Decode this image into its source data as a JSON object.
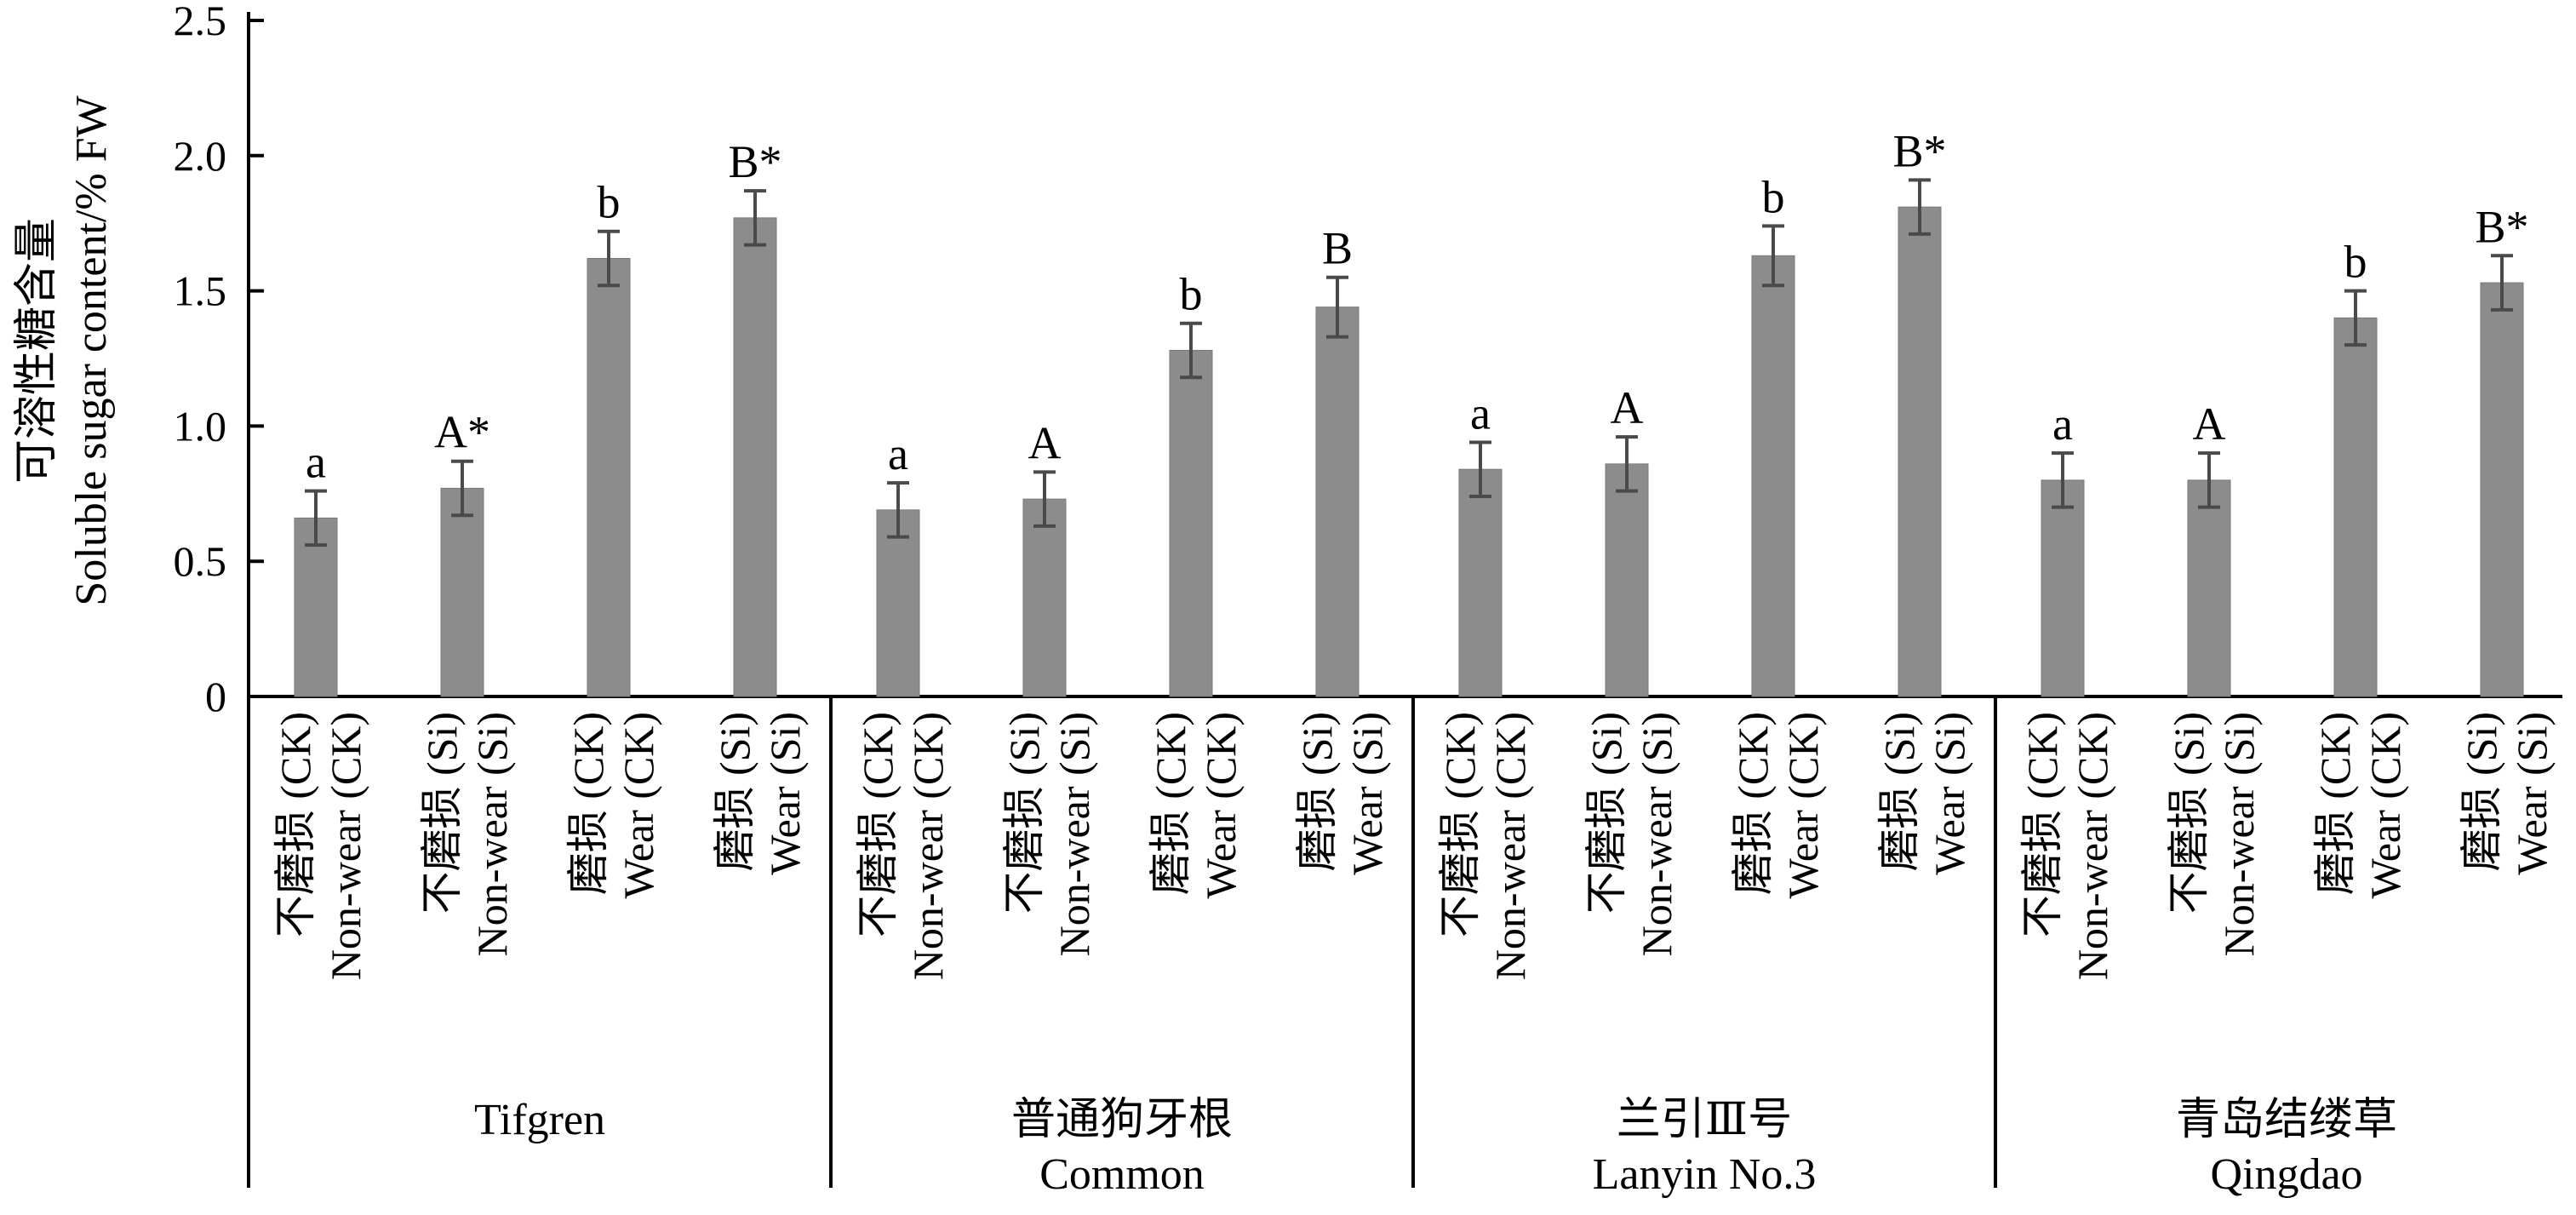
{
  "chart_data": {
    "type": "bar",
    "ylabel_cn": "可溶性糖含量",
    "ylabel": "Soluble sugar content/% FW",
    "ylim": [
      0,
      2.5
    ],
    "yticks": [
      "0",
      "0.5",
      "1.0",
      "1.5",
      "2.0",
      "2.5"
    ],
    "colors": {
      "bar": "#8c8c8c",
      "error": "#4a4a4a",
      "axis": "#000000"
    },
    "categories": [
      {
        "cn": "不磨损 (CK)",
        "en": "Non-wear (CK)"
      },
      {
        "cn": "不磨损 (Si)",
        "en": "Non-wear (Si)"
      },
      {
        "cn": "磨损 (CK)",
        "en": "Wear (CK)"
      },
      {
        "cn": "磨损 (Si)",
        "en": "Wear (Si)"
      }
    ],
    "groups": [
      {
        "cn": "",
        "en": "Tifgren",
        "values": [
          0.66,
          0.77,
          1.62,
          1.77
        ],
        "errors": [
          0.1,
          0.1,
          0.1,
          0.1
        ],
        "labels": [
          "a",
          "A*",
          "b",
          "B*"
        ]
      },
      {
        "cn": "普通狗牙根",
        "en": "Common",
        "values": [
          0.69,
          0.73,
          1.28,
          1.44
        ],
        "errors": [
          0.1,
          0.1,
          0.1,
          0.11
        ],
        "labels": [
          "a",
          "A",
          "b",
          "B"
        ]
      },
      {
        "cn": "兰引Ⅲ号",
        "en": "Lanyin No.3",
        "values": [
          0.84,
          0.86,
          1.63,
          1.81
        ],
        "errors": [
          0.1,
          0.1,
          0.11,
          0.1
        ],
        "labels": [
          "a",
          "A",
          "b",
          "B*"
        ]
      },
      {
        "cn": "青岛结缕草",
        "en": "Qingdao",
        "values": [
          0.8,
          0.8,
          1.4,
          1.53
        ],
        "errors": [
          0.1,
          0.1,
          0.1,
          0.1
        ],
        "labels": [
          "a",
          "A",
          "b",
          "B*"
        ]
      }
    ]
  }
}
